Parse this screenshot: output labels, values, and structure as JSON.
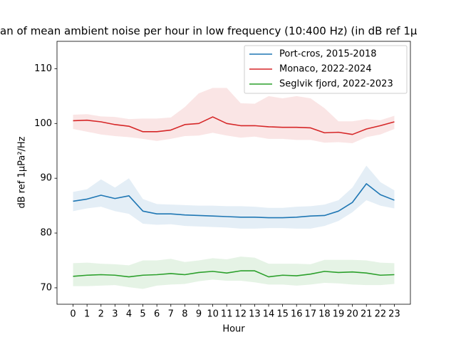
{
  "chart_data": {
    "type": "line",
    "title": "an of mean ambient noise per hour in low frequency (10:400 Hz) (in dB ref 1μ",
    "x_label": "Hour",
    "y_label": "dB ref 1μPa²/Hz",
    "x": [
      0,
      1,
      2,
      3,
      4,
      5,
      6,
      7,
      8,
      9,
      10,
      11,
      12,
      13,
      14,
      15,
      16,
      17,
      18,
      19,
      20,
      21,
      22,
      23
    ],
    "xlim": [
      -1.15,
      24.15
    ],
    "xticks": [
      0,
      1,
      2,
      3,
      4,
      5,
      6,
      7,
      8,
      9,
      10,
      11,
      12,
      13,
      14,
      15,
      16,
      17,
      18,
      19,
      20,
      21,
      22,
      23
    ],
    "ylim": [
      67,
      115
    ],
    "yticks": [
      70,
      80,
      90,
      100,
      110
    ],
    "legend": "upper right",
    "series": [
      {
        "name": "Port-cros, 2015-2018",
        "color": "#1f77b4",
        "values": [
          85.8,
          86.2,
          86.9,
          86.3,
          86.8,
          84.0,
          83.5,
          83.5,
          83.3,
          83.2,
          83.1,
          83.0,
          82.9,
          82.9,
          82.8,
          82.8,
          82.9,
          83.1,
          83.2,
          84.0,
          85.6,
          89.0,
          87.0,
          86.0
        ],
        "lower": [
          84.0,
          84.5,
          84.8,
          84.0,
          83.5,
          81.7,
          81.5,
          81.6,
          81.3,
          81.2,
          81.1,
          81.0,
          80.8,
          80.8,
          80.9,
          80.9,
          80.8,
          80.8,
          81.3,
          82.2,
          83.8,
          86.0,
          85.0,
          84.5
        ],
        "upper": [
          87.5,
          88.0,
          89.8,
          88.3,
          90.0,
          86.2,
          85.3,
          85.2,
          85.1,
          85.0,
          85.0,
          84.9,
          84.9,
          84.8,
          84.6,
          84.6,
          84.8,
          84.9,
          85.2,
          86.0,
          88.3,
          92.3,
          89.3,
          87.8
        ]
      },
      {
        "name": "Monaco, 2022-2024",
        "color": "#d62728",
        "values": [
          100.5,
          100.6,
          100.3,
          99.8,
          99.5,
          98.5,
          98.5,
          98.8,
          99.8,
          100.0,
          101.2,
          100.0,
          99.6,
          99.6,
          99.4,
          99.3,
          99.3,
          99.2,
          98.3,
          98.4,
          98.0,
          99.0,
          99.6,
          100.3
        ],
        "lower": [
          99.0,
          98.5,
          98.0,
          97.7,
          97.5,
          97.2,
          96.8,
          97.2,
          97.7,
          97.8,
          98.3,
          97.8,
          97.4,
          97.6,
          97.2,
          97.2,
          97.0,
          97.0,
          96.5,
          96.6,
          96.4,
          97.5,
          98.0,
          99.0
        ],
        "upper": [
          101.6,
          101.7,
          101.3,
          101.2,
          100.8,
          100.9,
          100.9,
          101.1,
          103.0,
          105.5,
          106.5,
          106.5,
          103.7,
          103.6,
          105.0,
          104.6,
          105.0,
          104.6,
          102.8,
          100.4,
          100.4,
          100.8,
          100.6,
          101.4
        ]
      },
      {
        "name": "Seglvik fjord, 2022-2023",
        "color": "#2ca02c",
        "values": [
          72.1,
          72.3,
          72.4,
          72.3,
          72.0,
          72.3,
          72.4,
          72.6,
          72.4,
          72.8,
          73.0,
          72.7,
          73.1,
          73.1,
          72.0,
          72.3,
          72.2,
          72.5,
          73.0,
          72.8,
          72.9,
          72.7,
          72.3,
          72.4
        ],
        "lower": [
          70.3,
          70.3,
          70.4,
          70.5,
          70.1,
          69.8,
          70.4,
          70.6,
          70.7,
          71.2,
          71.5,
          71.3,
          71.3,
          71.0,
          70.6,
          70.6,
          70.4,
          70.6,
          70.9,
          70.8,
          70.6,
          70.5,
          70.5,
          70.7
        ],
        "upper": [
          74.5,
          74.6,
          74.4,
          74.3,
          74.1,
          75.0,
          75.0,
          75.3,
          74.7,
          75.0,
          75.4,
          75.2,
          75.7,
          75.5,
          74.4,
          74.4,
          74.4,
          74.3,
          75.1,
          75.1,
          75.1,
          75.0,
          74.6,
          74.5
        ]
      }
    ]
  }
}
